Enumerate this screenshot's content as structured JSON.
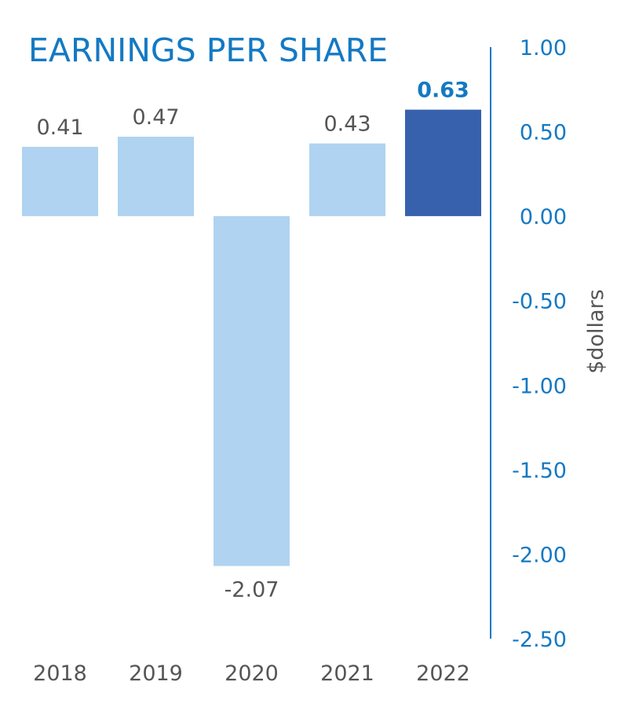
{
  "chart_data": {
    "type": "bar",
    "title": "EARNINGS PER SHARE",
    "ylabel": "$dollars",
    "categories": [
      "2018",
      "2019",
      "2020",
      "2021",
      "2022"
    ],
    "values": [
      0.41,
      0.47,
      -2.07,
      0.43,
      0.63
    ],
    "value_labels": [
      "0.41",
      "0.47",
      "-2.07",
      "0.43",
      "0.63"
    ],
    "highlight_index": 4,
    "ylim": [
      -2.5,
      1.0
    ],
    "yticks": [
      "1.00",
      "0.50",
      "0.00",
      "-0.50",
      "-1.00",
      "-1.50",
      "-2.00",
      "-2.50"
    ],
    "ytick_values": [
      1.0,
      0.5,
      0.0,
      -0.5,
      -1.0,
      -1.5,
      -2.0,
      -2.5
    ],
    "y_axis_position": "right",
    "grid": false,
    "colors": {
      "bar": "#afd3f0",
      "bar_highlight": "#3761ad",
      "title": "#1479c3",
      "axis": "#1479c3",
      "ticks": "#1479c3",
      "value_label": "#555555",
      "value_label_highlight": "#1479c3",
      "category_label": "#555555",
      "ylabel": "#555555"
    }
  }
}
